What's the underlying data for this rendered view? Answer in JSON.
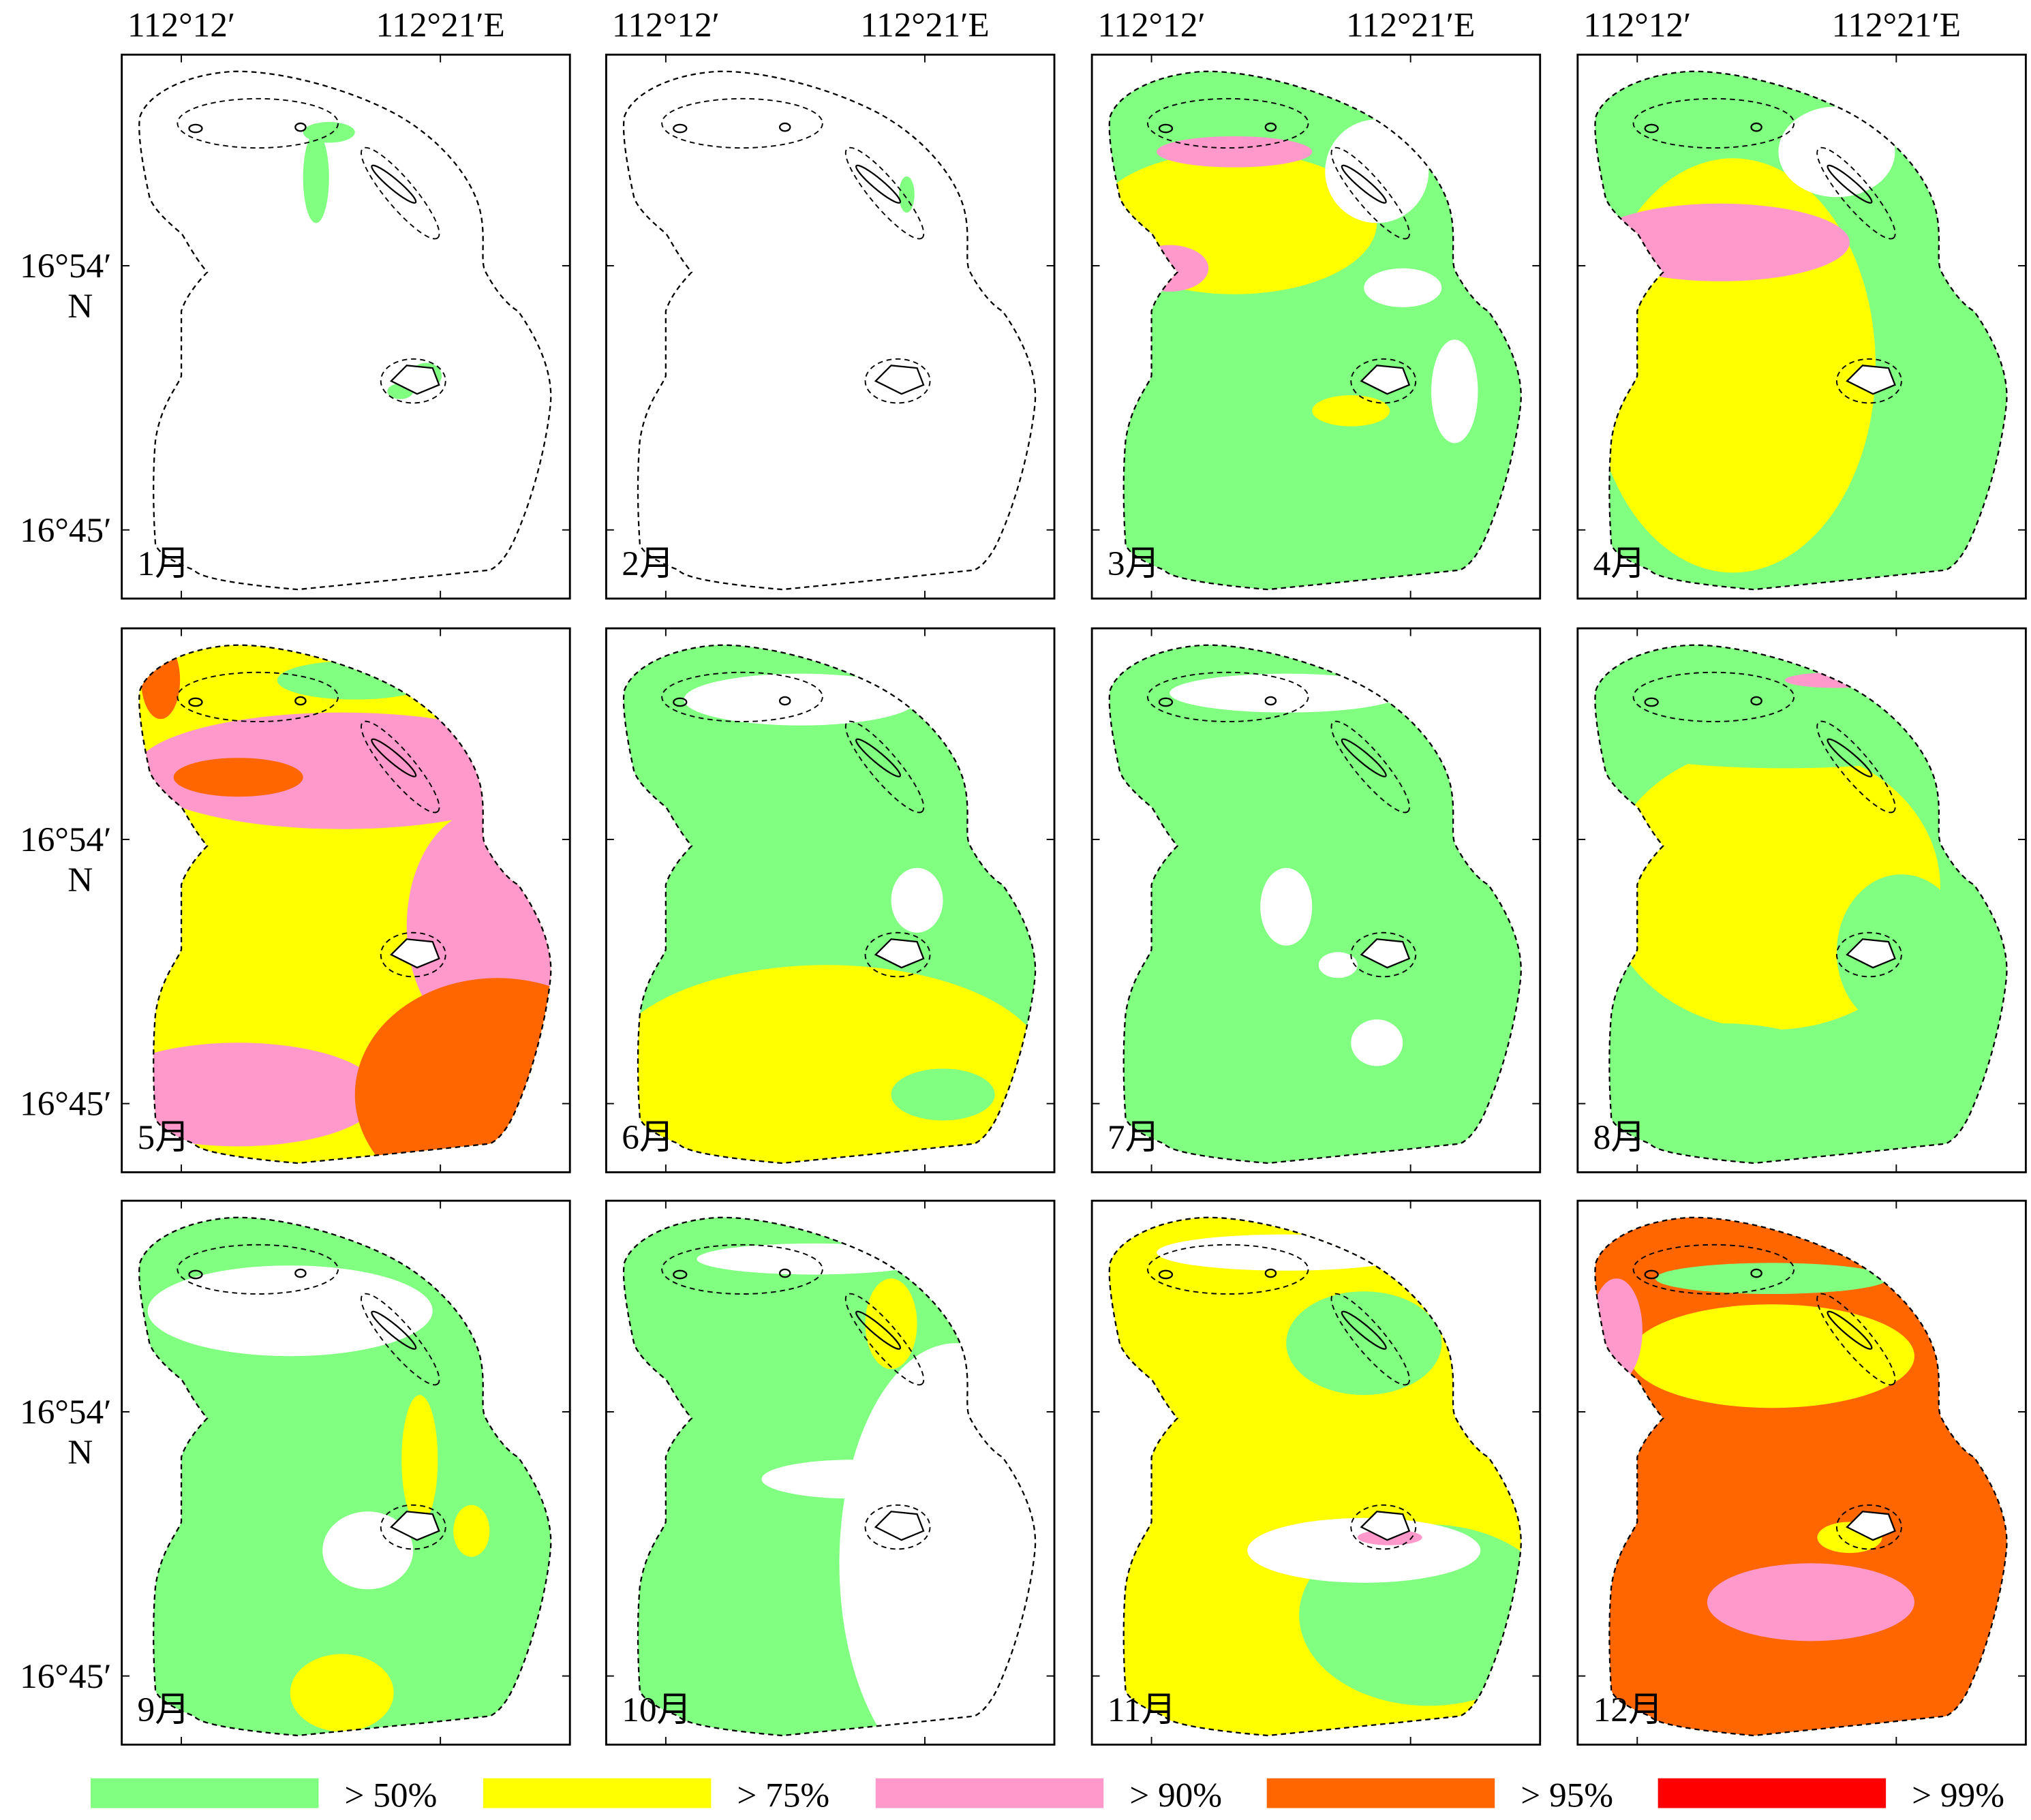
{
  "longitude_labels": [
    "112°12′",
    "112°21′E"
  ],
  "latitude_labels": {
    "north": "16°54′",
    "hemisphere": "N",
    "south": "16°45′"
  },
  "panels": [
    "1月",
    "2月",
    "3月",
    "4月",
    "5月",
    "6月",
    "7月",
    "8月",
    "9月",
    "10月",
    "11月",
    "12月"
  ],
  "legend": [
    {
      "label": "> 50%",
      "color": "#80ff80"
    },
    {
      "label": "> 75%",
      "color": "#ffff00"
    },
    {
      "label": "> 90%",
      "color": "#ff99cc"
    },
    {
      "label": "> 95%",
      "color": "#ff6600"
    },
    {
      "label": "> 99%",
      "color": "#ff0000"
    }
  ]
}
